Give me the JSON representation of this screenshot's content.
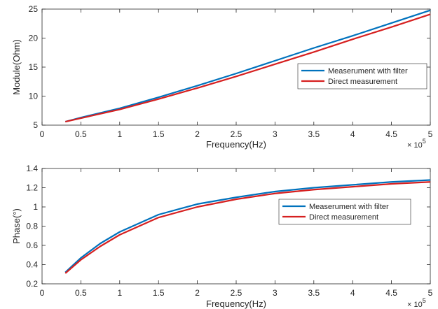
{
  "chart_data": [
    {
      "type": "line",
      "xlabel": "Frequency(Hz)",
      "ylabel": "Module(Ohm)",
      "xlim": [
        0,
        500000
      ],
      "ylim": [
        5,
        25
      ],
      "xticks": [
        "0",
        "0.5",
        "1",
        "1.5",
        "2",
        "2.5",
        "3",
        "3.5",
        "4",
        "4.5",
        "5"
      ],
      "yticks": [
        "5",
        "10",
        "15",
        "20",
        "25"
      ],
      "x_multiplier": {
        "base": "× 10",
        "exponent": "5"
      },
      "grid": false,
      "legend_position": "right",
      "series": [
        {
          "name": "Measerument with filter",
          "color": "#0072BD",
          "x": [
            30000,
            50000,
            100000,
            150000,
            200000,
            250000,
            300000,
            350000,
            400000,
            450000,
            500000
          ],
          "y": [
            5.6,
            6.3,
            7.9,
            9.8,
            11.8,
            13.9,
            16.1,
            18.3,
            20.4,
            22.6,
            24.8
          ]
        },
        {
          "name": "Direct measurement",
          "color": "#D62020",
          "x": [
            30000,
            50000,
            100000,
            150000,
            200000,
            250000,
            300000,
            350000,
            400000,
            450000,
            500000
          ],
          "y": [
            5.6,
            6.2,
            7.7,
            9.5,
            11.4,
            13.4,
            15.5,
            17.6,
            19.8,
            21.9,
            24.1
          ]
        }
      ]
    },
    {
      "type": "line",
      "xlabel": "Frequency(Hz)",
      "ylabel": "Phase(°)",
      "xlim": [
        0,
        500000
      ],
      "ylim": [
        0.2,
        1.4
      ],
      "xticks": [
        "0",
        "0.5",
        "1",
        "1.5",
        "2",
        "2.5",
        "3",
        "3.5",
        "4",
        "4.5",
        "5"
      ],
      "yticks": [
        "0.2",
        "0.4",
        "0.6",
        "0.8",
        "1",
        "1.2",
        "1.4"
      ],
      "x_multiplier": {
        "base": "× 10",
        "exponent": "5"
      },
      "grid": false,
      "legend_position": "right",
      "series": [
        {
          "name": "Measerument with filter",
          "color": "#0072BD",
          "x": [
            30000,
            50000,
            75000,
            100000,
            150000,
            200000,
            250000,
            300000,
            350000,
            400000,
            450000,
            500000
          ],
          "y": [
            0.32,
            0.47,
            0.62,
            0.74,
            0.92,
            1.03,
            1.1,
            1.16,
            1.2,
            1.23,
            1.26,
            1.28
          ]
        },
        {
          "name": "Direct measurement",
          "color": "#D62020",
          "x": [
            30000,
            50000,
            75000,
            100000,
            150000,
            200000,
            250000,
            300000,
            350000,
            400000,
            450000,
            500000
          ],
          "y": [
            0.31,
            0.45,
            0.59,
            0.71,
            0.89,
            1.0,
            1.08,
            1.14,
            1.18,
            1.21,
            1.24,
            1.26
          ]
        }
      ]
    }
  ]
}
